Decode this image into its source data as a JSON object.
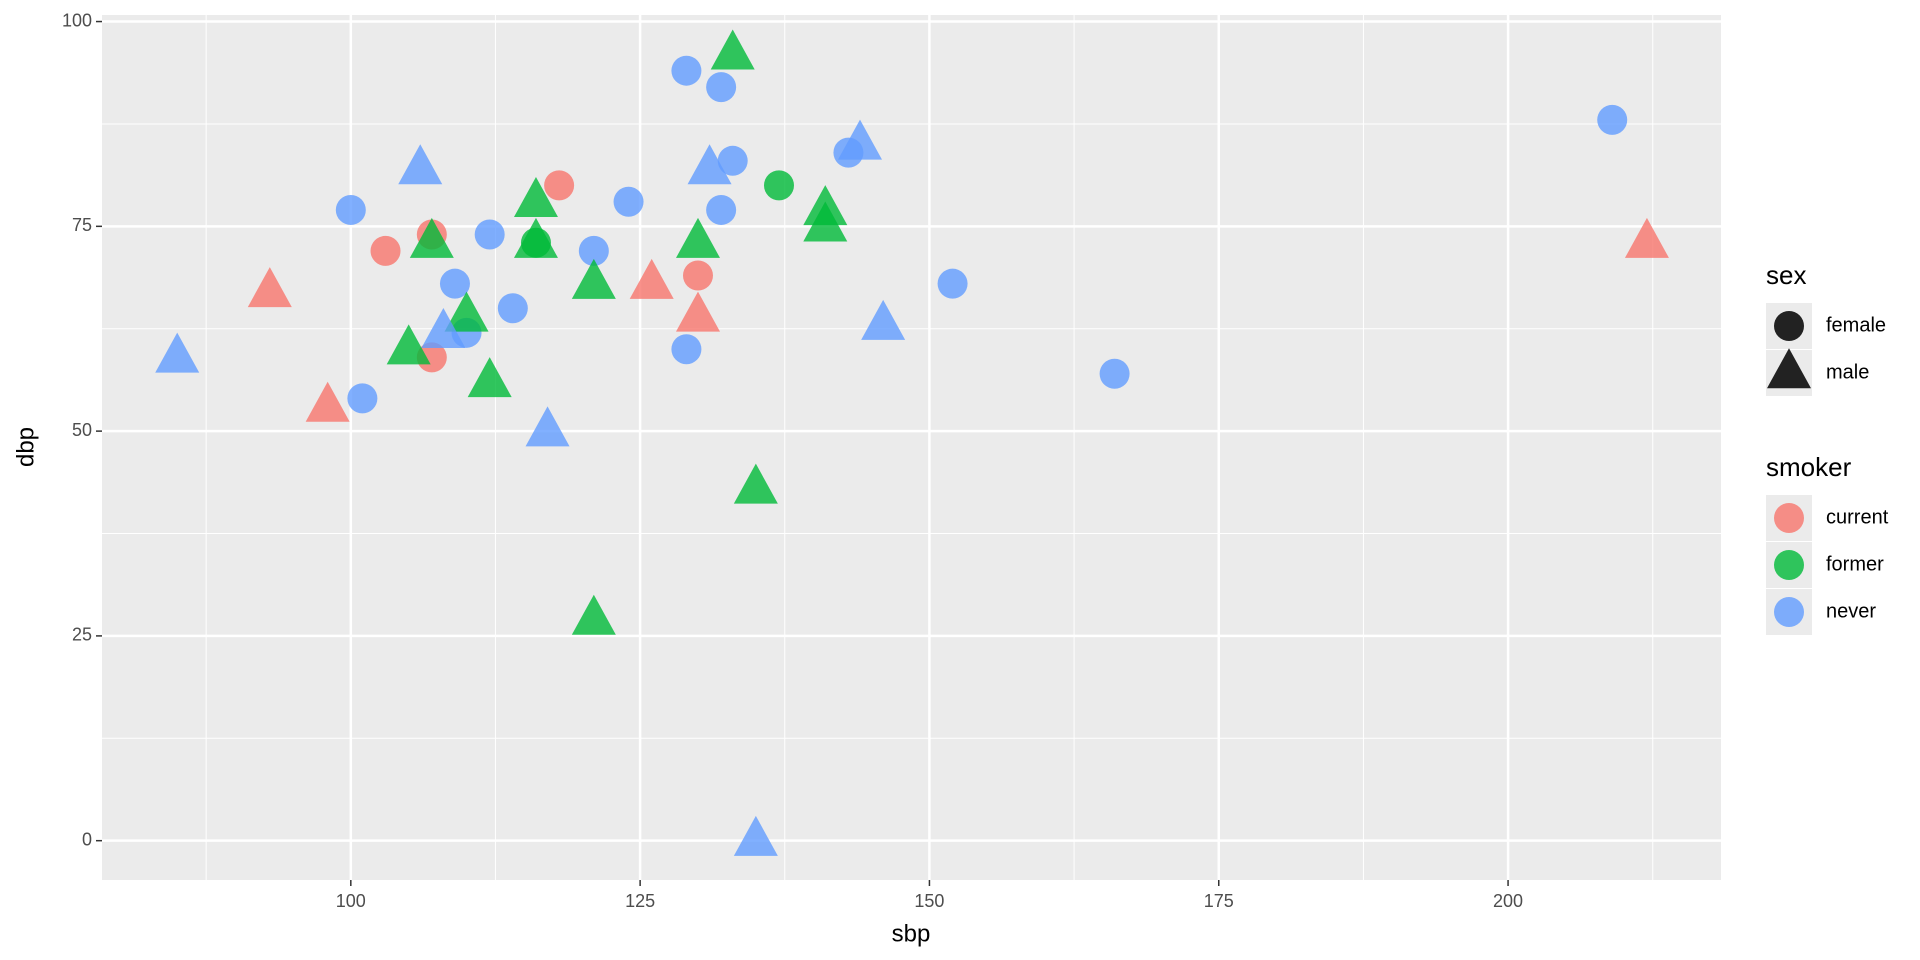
{
  "chart_data": {
    "type": "scatter",
    "xlabel": "sbp",
    "ylabel": "dbp",
    "xlim": [
      78.5,
      218.4
    ],
    "ylim": [
      -4.8,
      100.8
    ],
    "xticks": [
      100,
      125,
      150,
      175,
      200
    ],
    "yticks": [
      0,
      25,
      50,
      75,
      100
    ],
    "grid": true,
    "x": [
      129,
      132,
      209,
      143,
      133,
      118,
      137,
      100,
      124,
      132,
      103,
      107,
      112,
      116,
      121,
      152,
      109,
      130,
      114,
      110,
      107,
      129,
      166,
      101,
      133,
      106,
      131,
      144,
      116,
      141,
      141,
      107,
      116,
      130,
      212,
      93,
      121,
      126,
      130,
      110,
      146,
      85,
      105,
      108,
      112,
      98,
      117,
      135,
      121,
      135
    ],
    "y": [
      94,
      92,
      88,
      84,
      83,
      80,
      80,
      77,
      78,
      77,
      72,
      74,
      74,
      73,
      72,
      68,
      68,
      69,
      65,
      62,
      59,
      60,
      57,
      54,
      96,
      82,
      82,
      85,
      78,
      77,
      75,
      73,
      73,
      73,
      73,
      67,
      68,
      68,
      64,
      64,
      63,
      59,
      60,
      62,
      56,
      53,
      50,
      43,
      27,
      0
    ],
    "sex": [
      "female",
      "female",
      "female",
      "female",
      "female",
      "female",
      "female",
      "female",
      "female",
      "female",
      "female",
      "female",
      "female",
      "female",
      "female",
      "female",
      "female",
      "female",
      "female",
      "female",
      "female",
      "female",
      "female",
      "female",
      "male",
      "male",
      "male",
      "male",
      "male",
      "male",
      "male",
      "male",
      "male",
      "male",
      "male",
      "male",
      "male",
      "male",
      "male",
      "male",
      "male",
      "male",
      "male",
      "male",
      "male",
      "male",
      "male",
      "male",
      "male",
      "male"
    ],
    "smoker": [
      "never",
      "never",
      "never",
      "never",
      "never",
      "current",
      "former",
      "never",
      "never",
      "never",
      "current",
      "current",
      "never",
      "former",
      "never",
      "never",
      "never",
      "current",
      "never",
      "never",
      "current",
      "never",
      "never",
      "never",
      "former",
      "never",
      "never",
      "never",
      "former",
      "former",
      "former",
      "former",
      "former",
      "former",
      "current",
      "current",
      "former",
      "current",
      "current",
      "former",
      "never",
      "never",
      "former",
      "never",
      "former",
      "current",
      "never",
      "former",
      "former",
      "never"
    ],
    "legends": [
      {
        "title": "sex",
        "labels": [
          "female",
          "male"
        ],
        "shapes": [
          "circle",
          "triangle"
        ]
      },
      {
        "title": "smoker",
        "labels": [
          "current",
          "former",
          "never"
        ],
        "colors": [
          "#F8766D",
          "#00BA38",
          "#619CFF"
        ]
      }
    ]
  }
}
